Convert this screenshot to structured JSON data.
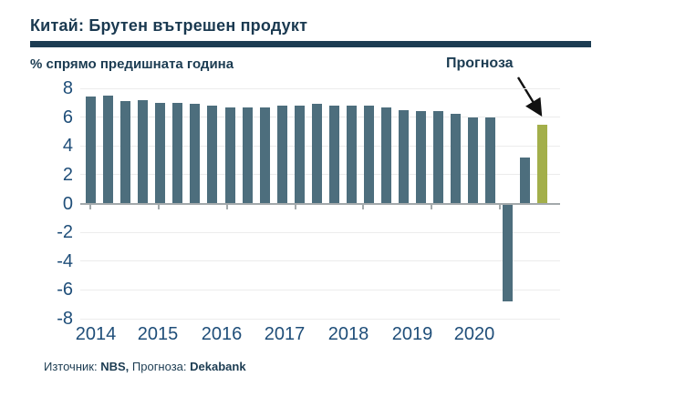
{
  "header": {
    "title": "Китай: Брутен вътрешен продукт",
    "subtitle": "% спрямо предишната година",
    "forecast_annotation": "Прогноза"
  },
  "footer": {
    "source_prefix": "Източник:",
    "source_name": "NBS,",
    "forecast_prefix": "Прогноза:",
    "forecast_name": "Dekabank"
  },
  "chart_data": {
    "type": "bar",
    "title": "Китай: Брутен вътрешен продукт",
    "ylabel": "% спрямо предишната година",
    "x": [
      "2014 Q1",
      "2014 Q2",
      "2014 Q3",
      "2014 Q4",
      "2015 Q1",
      "2015 Q2",
      "2015 Q3",
      "2015 Q4",
      "2016 Q1",
      "2016 Q2",
      "2016 Q3",
      "2016 Q4",
      "2017 Q1",
      "2017 Q2",
      "2017 Q3",
      "2017 Q4",
      "2018 Q1",
      "2018 Q2",
      "2018 Q3",
      "2018 Q4",
      "2019 Q1",
      "2019 Q2",
      "2019 Q3",
      "2019 Q4",
      "2020 Q1",
      "2020 Q2",
      "2020 Q3 (прогноза)"
    ],
    "values": [
      7.4,
      7.5,
      7.1,
      7.2,
      7.0,
      7.0,
      6.9,
      6.8,
      6.7,
      6.7,
      6.7,
      6.8,
      6.8,
      6.9,
      6.8,
      6.8,
      6.8,
      6.7,
      6.5,
      6.4,
      6.4,
      6.2,
      6.0,
      6.0,
      -6.8,
      3.2,
      5.5
    ],
    "forecast_last_bar": true,
    "x_tick_labels": [
      "2014",
      "2015",
      "2016",
      "2017",
      "2018",
      "2019",
      "2020"
    ],
    "ylim": [
      -8,
      8
    ],
    "ytick_step": 2,
    "grid": "horizontal",
    "legend": "none",
    "annotation": "Прогноза",
    "colors": {
      "bar": "#4d6e7d",
      "forecast_bar": "#a3af4a",
      "axis_text": "#1f4e79",
      "title_text": "#1a3950",
      "gridline": "#ececec",
      "zero_axis": "#a3a9ab",
      "arrow": "#111111"
    }
  }
}
